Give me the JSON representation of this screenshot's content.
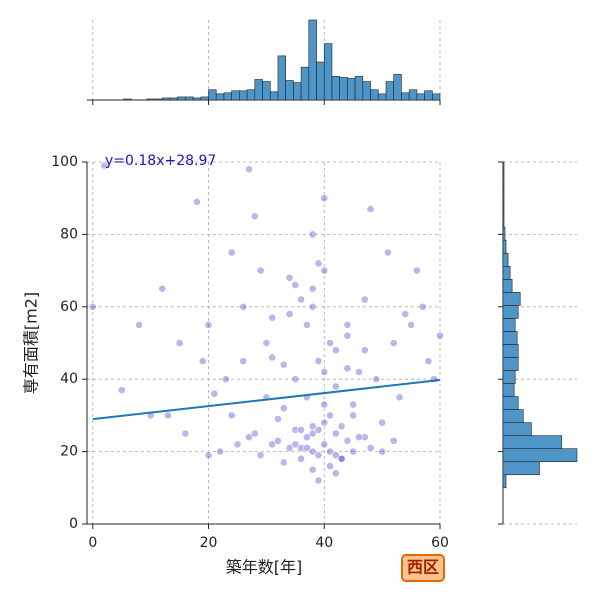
{
  "chart_data": {
    "type": "scatter",
    "x_label": "築年数[年]",
    "y_label": "専有面積[m2]",
    "annotation": "y=0.18x+28.97",
    "badge": "西区",
    "regression": {
      "slope": 0.18,
      "intercept": 28.97,
      "color": "#1f77b4"
    },
    "color": "#3232c8",
    "grid": true,
    "xlim": [
      -1,
      60
    ],
    "ylim": [
      0,
      100
    ],
    "xticks": [
      0,
      20,
      40,
      60
    ],
    "yticks": [
      0,
      20,
      40,
      60,
      80,
      100
    ],
    "x": [
      38,
      40,
      36,
      42,
      34,
      39,
      44,
      33,
      37,
      41,
      35,
      45,
      31,
      43,
      38,
      40,
      36,
      29,
      47,
      32,
      39,
      41,
      37,
      35,
      42,
      38,
      44,
      30,
      46,
      34,
      22,
      25,
      20,
      27,
      48,
      50,
      52,
      28,
      24,
      21,
      38,
      40,
      36,
      42,
      33,
      45,
      39,
      31,
      47,
      35,
      41,
      37,
      43,
      30,
      44,
      38,
      26,
      49,
      34,
      40,
      15,
      12,
      18,
      55,
      58,
      53,
      57,
      10,
      8,
      5,
      39,
      42,
      36,
      33,
      45,
      40,
      38,
      44,
      31,
      47,
      23,
      26,
      29,
      50,
      52,
      54,
      56,
      20,
      24,
      28,
      38,
      41,
      35,
      43,
      32,
      46,
      39,
      37,
      40,
      42,
      0,
      2,
      16,
      60,
      59,
      48,
      51,
      27,
      19,
      13
    ],
    "y": [
      20,
      22,
      18,
      25,
      21,
      19,
      23,
      17,
      24,
      16,
      26,
      20,
      22,
      18,
      15,
      28,
      21,
      19,
      24,
      23,
      45,
      50,
      55,
      40,
      48,
      60,
      52,
      35,
      42,
      58,
      20,
      22,
      19,
      24,
      21,
      20,
      23,
      25,
      30,
      36,
      65,
      70,
      62,
      38,
      44,
      33,
      72,
      57,
      48,
      66,
      30,
      35,
      27,
      50,
      43,
      80,
      60,
      40,
      68,
      90,
      50,
      65,
      89,
      55,
      45,
      35,
      60,
      30,
      55,
      37,
      12,
      14,
      26,
      32,
      30,
      42,
      27,
      55,
      46,
      62,
      40,
      45,
      70,
      28,
      50,
      58,
      70,
      55,
      75,
      85,
      25,
      20,
      22,
      18,
      29,
      24,
      26,
      21,
      33,
      19,
      60,
      99,
      25,
      52,
      40,
      87,
      75,
      98,
      45,
      30
    ],
    "x_hist": {
      "color": "#4f96c8",
      "bins": [
        0,
        1.33,
        2.67,
        4,
        5.33,
        6.67,
        8,
        9.33,
        10.67,
        12,
        13.33,
        14.67,
        16,
        17.33,
        18.67,
        20,
        21.33,
        22.67,
        24,
        25.33,
        26.67,
        28,
        29.33,
        30.67,
        32,
        33.33,
        34.67,
        36,
        37.33,
        38.67,
        40,
        41.33,
        42.67,
        44,
        45.33,
        46.67,
        48,
        49.33,
        50.67,
        52,
        53.33,
        54.67,
        56,
        57.33,
        58.67,
        60
      ],
      "counts": [
        0,
        0,
        0,
        0,
        1,
        0,
        0,
        1,
        1,
        2,
        2,
        3,
        3,
        2,
        3,
        10,
        6,
        7,
        9,
        9,
        10,
        20,
        18,
        8,
        43,
        19,
        17,
        32,
        78,
        37,
        55,
        23,
        22,
        21,
        23,
        18,
        10,
        6,
        18,
        25,
        7,
        10,
        6,
        9,
        6
      ]
    },
    "y_hist": {
      "color": "#4f96c8",
      "bins": [
        10,
        13.6,
        17.2,
        20.8,
        24.4,
        28,
        31.6,
        35.2,
        38.8,
        42.4,
        46,
        49.6,
        53.2,
        56.8,
        60.4,
        64,
        67.6,
        71.2,
        74.8,
        78.4,
        82,
        85.6,
        89.2,
        92.8,
        96.4,
        100
      ],
      "counts": [
        3,
        36,
        73,
        58,
        28,
        20,
        15,
        11,
        12,
        15,
        15,
        14,
        12,
        15,
        17,
        9,
        7,
        5,
        3,
        2,
        1,
        1,
        1,
        1,
        1
      ]
    }
  }
}
